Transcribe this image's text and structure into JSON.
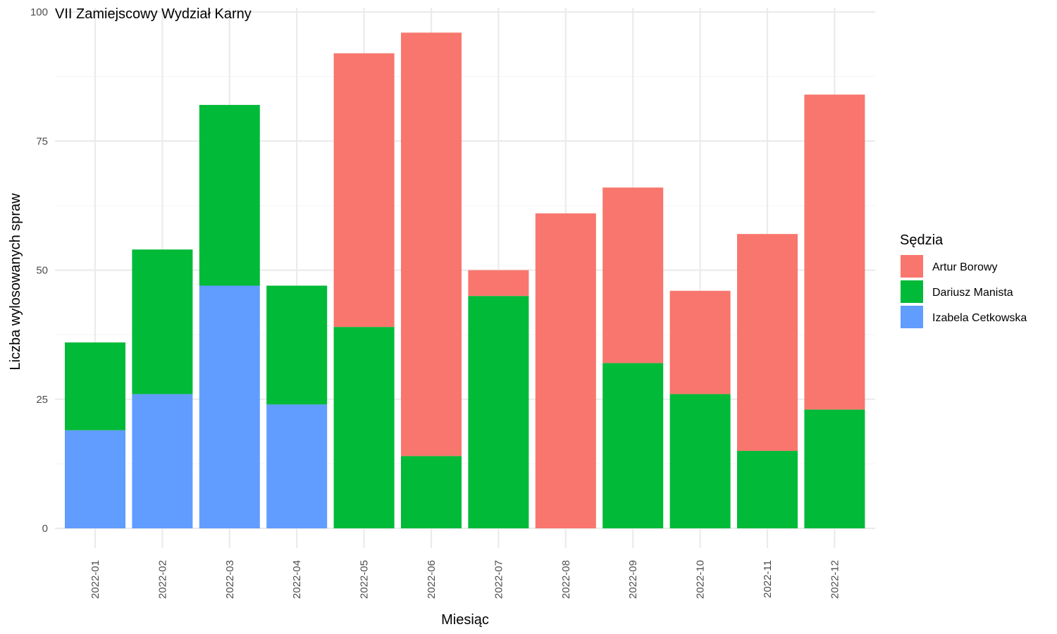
{
  "chart_data": {
    "type": "bar",
    "stacked": true,
    "title": "VII Zamiejscowy Wydział Karny",
    "xlabel": "Miesiąc",
    "ylabel": "Liczba wylosowanych spraw",
    "ylim": [
      0,
      100
    ],
    "yticks": [
      0,
      25,
      50,
      75,
      100
    ],
    "grid": true,
    "legend_title": "Sędzia",
    "legend_position": "right",
    "categories": [
      "2022-01",
      "2022-02",
      "2022-03",
      "2022-04",
      "2022-05",
      "2022-06",
      "2022-07",
      "2022-08",
      "2022-09",
      "2022-10",
      "2022-11",
      "2022-12"
    ],
    "series": [
      {
        "name": "Izabela Cetkowska",
        "color": "#619CFF",
        "values": [
          19,
          26,
          47,
          24,
          0,
          0,
          0,
          0,
          0,
          0,
          0,
          0
        ]
      },
      {
        "name": "Dariusz Manista",
        "color": "#00BA38",
        "values": [
          17,
          28,
          35,
          23,
          39,
          14,
          45,
          0,
          32,
          26,
          15,
          23
        ]
      },
      {
        "name": "Artur Borowy",
        "color": "#F8766D",
        "values": [
          0,
          0,
          0,
          0,
          53,
          82,
          5,
          61,
          34,
          20,
          42,
          61
        ]
      }
    ],
    "legend_order": [
      "Artur Borowy",
      "Dariusz Manista",
      "Izabela Cetkowska"
    ]
  }
}
